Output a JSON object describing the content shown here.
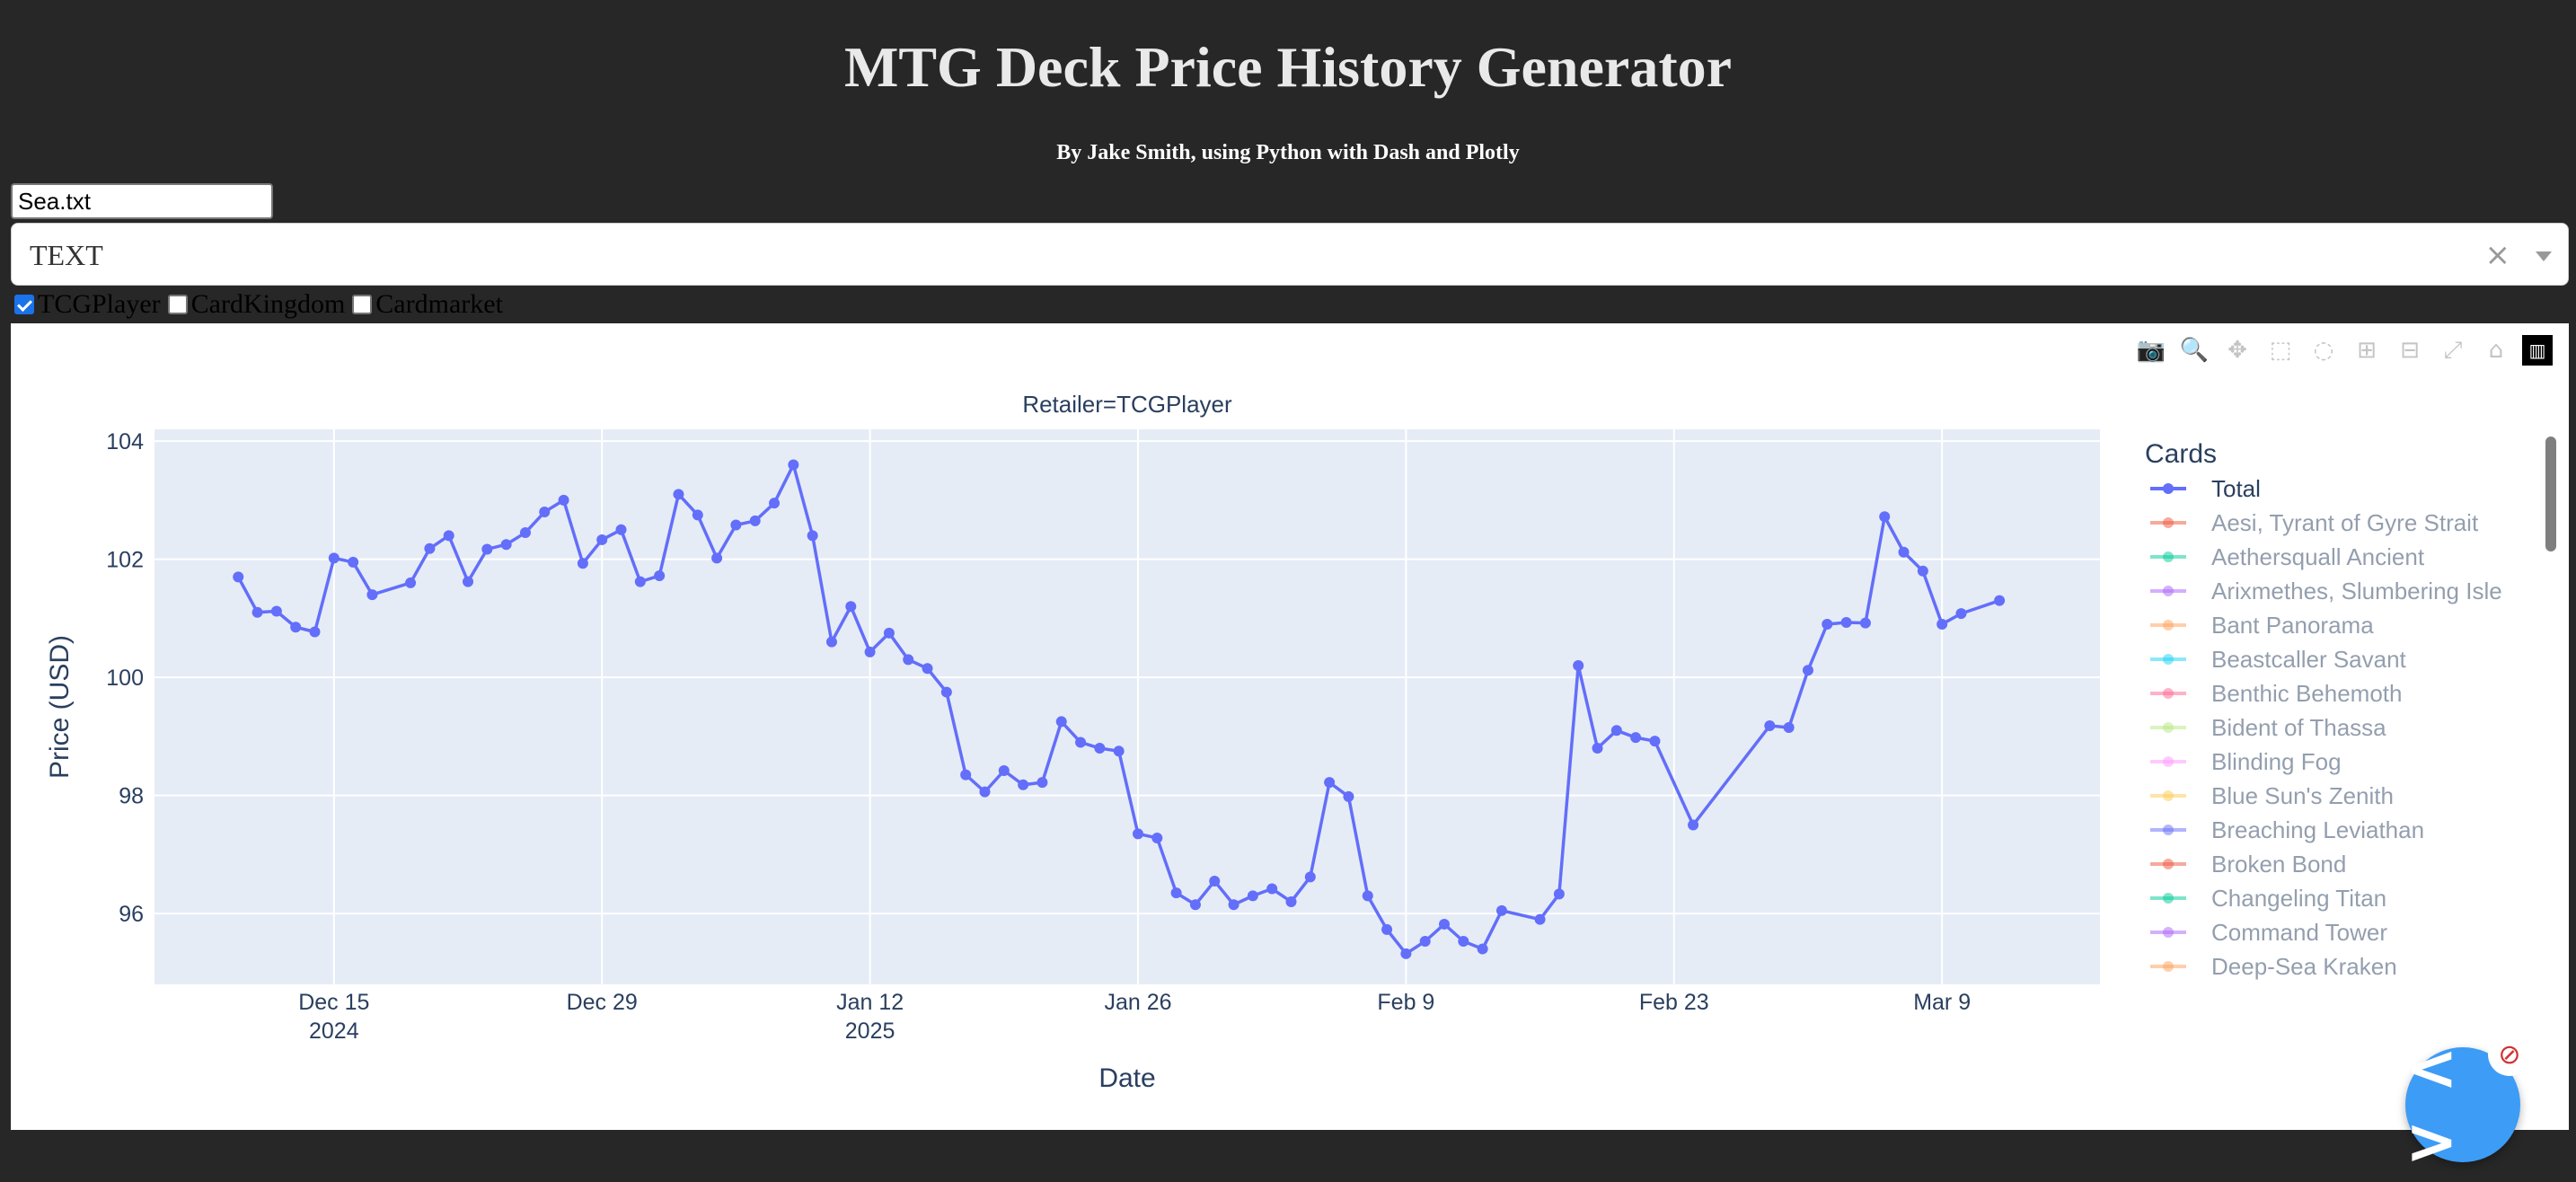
{
  "header": {
    "title": "MTG Deck Price History Generator",
    "subtitle": "By Jake Smith, using Python with Dash and Plotly"
  },
  "upload": {
    "filename": "Sea.txt"
  },
  "format_dropdown": {
    "value": "TEXT",
    "clear_icon": "close-icon",
    "arrow_icon": "chevron-down-icon"
  },
  "retailers": [
    {
      "label": "TCGPlayer",
      "checked": true
    },
    {
      "label": "CardKingdom",
      "checked": false
    },
    {
      "label": "Cardmarket",
      "checked": false
    }
  ],
  "modebar": [
    "camera-icon",
    "zoom-icon",
    "pan-icon",
    "box-select-icon",
    "lasso-select-icon",
    "zoom-in-icon",
    "zoom-out-icon",
    "autoscale-icon",
    "reset-axes-icon",
    "plotly-logo-icon"
  ],
  "fab": {
    "icon": "code-icon",
    "badge_icon": "prohibited-icon"
  },
  "chart_data": {
    "type": "line",
    "title": "Retailer=TCGPlayer",
    "xlabel": "Date",
    "ylabel": "Price (USD)",
    "x_ticks": [
      {
        "date": "2024-12-15",
        "line1": "Dec 15",
        "line2": "2024"
      },
      {
        "date": "2024-12-29",
        "line1": "Dec 29",
        "line2": ""
      },
      {
        "date": "2025-01-12",
        "line1": "Jan 12",
        "line2": "2025"
      },
      {
        "date": "2025-01-26",
        "line1": "Jan 26",
        "line2": ""
      },
      {
        "date": "2025-02-09",
        "line1": "Feb 9",
        "line2": ""
      },
      {
        "date": "2025-02-23",
        "line1": "Feb 23",
        "line2": ""
      },
      {
        "date": "2025-03-09",
        "line1": "Mar 9",
        "line2": ""
      }
    ],
    "y_ticks": [
      96,
      98,
      100,
      102,
      104
    ],
    "xlim": [
      "2024-12-05T15:00:00",
      "2025-03-17T06:00:00"
    ],
    "ylim": [
      94.8,
      104.2
    ],
    "grid": true,
    "legend_title": "Cards",
    "legend_position": "right",
    "series": [
      {
        "name": "Total",
        "color": "#636efa",
        "points": [
          [
            "2024-12-10",
            101.7
          ],
          [
            "2024-12-11",
            101.1
          ],
          [
            "2024-12-12",
            101.12
          ],
          [
            "2024-12-13",
            100.85
          ],
          [
            "2024-12-14",
            100.77
          ],
          [
            "2024-12-15",
            102.02
          ],
          [
            "2024-12-16",
            101.95
          ],
          [
            "2024-12-17",
            101.4
          ],
          [
            "2024-12-19",
            101.6
          ],
          [
            "2024-12-20",
            102.18
          ],
          [
            "2024-12-21",
            102.4
          ],
          [
            "2024-12-22",
            101.62
          ],
          [
            "2024-12-23",
            102.17
          ],
          [
            "2024-12-24",
            102.25
          ],
          [
            "2024-12-25",
            102.45
          ],
          [
            "2024-12-26",
            102.8
          ],
          [
            "2024-12-27",
            103.0
          ],
          [
            "2024-12-28",
            101.93
          ],
          [
            "2024-12-29",
            102.33
          ],
          [
            "2024-12-30",
            102.5
          ],
          [
            "2024-12-31",
            101.62
          ],
          [
            "2025-01-01",
            101.72
          ],
          [
            "2025-01-02",
            103.1
          ],
          [
            "2025-01-03",
            102.75
          ],
          [
            "2025-01-04",
            102.02
          ],
          [
            "2025-01-05",
            102.58
          ],
          [
            "2025-01-06",
            102.65
          ],
          [
            "2025-01-07",
            102.95
          ],
          [
            "2025-01-08",
            103.6
          ],
          [
            "2025-01-09",
            102.4
          ],
          [
            "2025-01-10",
            100.6
          ],
          [
            "2025-01-11",
            101.2
          ],
          [
            "2025-01-12",
            100.43
          ],
          [
            "2025-01-13",
            100.75
          ],
          [
            "2025-01-14",
            100.3
          ],
          [
            "2025-01-15",
            100.15
          ],
          [
            "2025-01-16",
            99.75
          ],
          [
            "2025-01-17",
            98.35
          ],
          [
            "2025-01-18",
            98.06
          ],
          [
            "2025-01-19",
            98.42
          ],
          [
            "2025-01-20",
            98.18
          ],
          [
            "2025-01-21",
            98.22
          ],
          [
            "2025-01-22",
            99.25
          ],
          [
            "2025-01-23",
            98.9
          ],
          [
            "2025-01-24",
            98.8
          ],
          [
            "2025-01-25",
            98.75
          ],
          [
            "2025-01-26",
            97.35
          ],
          [
            "2025-01-27",
            97.28
          ],
          [
            "2025-01-28",
            96.35
          ],
          [
            "2025-01-29",
            96.15
          ],
          [
            "2025-01-30",
            96.55
          ],
          [
            "2025-01-31",
            96.15
          ],
          [
            "2025-02-01",
            96.3
          ],
          [
            "2025-02-02",
            96.42
          ],
          [
            "2025-02-03",
            96.2
          ],
          [
            "2025-02-04",
            96.62
          ],
          [
            "2025-02-05",
            98.22
          ],
          [
            "2025-02-06",
            97.98
          ],
          [
            "2025-02-07",
            96.3
          ],
          [
            "2025-02-08",
            95.73
          ],
          [
            "2025-02-09",
            95.32
          ],
          [
            "2025-02-10",
            95.53
          ],
          [
            "2025-02-11",
            95.82
          ],
          [
            "2025-02-12",
            95.53
          ],
          [
            "2025-02-13",
            95.4
          ],
          [
            "2025-02-14",
            96.05
          ],
          [
            "2025-02-16",
            95.9
          ],
          [
            "2025-02-17",
            96.33
          ],
          [
            "2025-02-18",
            100.2
          ],
          [
            "2025-02-19",
            98.8
          ],
          [
            "2025-02-20",
            99.1
          ],
          [
            "2025-02-21",
            98.98
          ],
          [
            "2025-02-22",
            98.92
          ],
          [
            "2025-02-24",
            97.5
          ],
          [
            "2025-02-28",
            99.18
          ],
          [
            "2025-03-01",
            99.15
          ],
          [
            "2025-03-02",
            100.12
          ],
          [
            "2025-03-03",
            100.9
          ],
          [
            "2025-03-04",
            100.93
          ],
          [
            "2025-03-05",
            100.92
          ],
          [
            "2025-03-06",
            102.72
          ],
          [
            "2025-03-07",
            102.12
          ],
          [
            "2025-03-08",
            101.8
          ],
          [
            "2025-03-09",
            100.9
          ],
          [
            "2025-03-10",
            101.08
          ],
          [
            "2025-03-12",
            101.3
          ]
        ]
      }
    ],
    "legend_items": [
      {
        "name": "Total",
        "color": "#636efa",
        "active": true
      },
      {
        "name": "Aesi, Tyrant of Gyre Strait",
        "color": "#ef553b",
        "active": false
      },
      {
        "name": "Aethersquall Ancient",
        "color": "#00cc96",
        "active": false
      },
      {
        "name": "Arixmethes, Slumbering Isle",
        "color": "#ab63fa",
        "active": false
      },
      {
        "name": "Bant Panorama",
        "color": "#ffa15a",
        "active": false
      },
      {
        "name": "Beastcaller Savant",
        "color": "#19d3f3",
        "active": false
      },
      {
        "name": "Benthic Behemoth",
        "color": "#ff6692",
        "active": false
      },
      {
        "name": "Bident of Thassa",
        "color": "#b6e880",
        "active": false
      },
      {
        "name": "Blinding Fog",
        "color": "#ff97ff",
        "active": false
      },
      {
        "name": "Blue Sun's Zenith",
        "color": "#fecb52",
        "active": false
      },
      {
        "name": "Breaching Leviathan",
        "color": "#636efa",
        "active": false
      },
      {
        "name": "Broken Bond",
        "color": "#ef553b",
        "active": false
      },
      {
        "name": "Changeling Titan",
        "color": "#00cc96",
        "active": false
      },
      {
        "name": "Command Tower",
        "color": "#ab63fa",
        "active": false
      },
      {
        "name": "Deep-Sea Kraken",
        "color": "#ffa15a",
        "active": false
      }
    ]
  }
}
